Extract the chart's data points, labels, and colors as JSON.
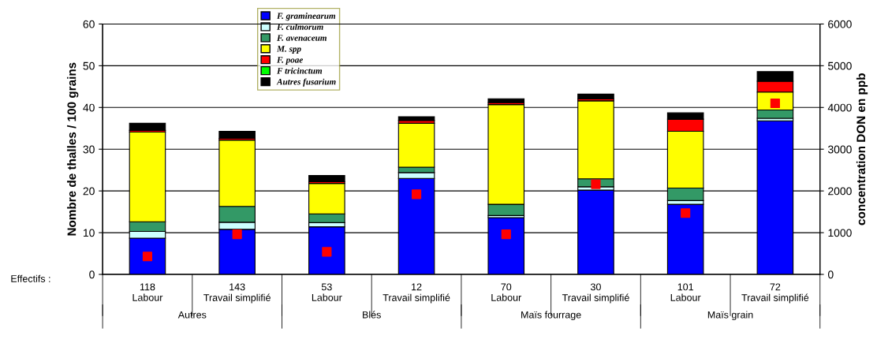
{
  "chart_data": {
    "type": "bar",
    "stacked": true,
    "ylabel": "Nombre de thalles / 100 grains",
    "y2label": "concentration DON en ppb",
    "categories": [
      "118\nLabour",
      "143\nTravail simplifié",
      "53\nLabour",
      "12\nTravail simplifié",
      "70\nLabour",
      "30\nTravail simplifié",
      "101\nLabour",
      "72\nTravail simplifié"
    ],
    "annotations": [
      "Effectifs :",
      "Autres",
      "Blés",
      "Maïs fourrage",
      "Maïs grain"
    ],
    "series": [
      {
        "name": "F. graminearum",
        "color": "#0000ff",
        "values": [
          8.7,
          10.8,
          11.4,
          23.0,
          13.6,
          20.2,
          16.8,
          36.8
        ]
      },
      {
        "name": "F. culmorum",
        "color": "#ccffff",
        "values": [
          1.6,
          1.7,
          1.0,
          1.4,
          0.5,
          0.8,
          0.9,
          0.6
        ]
      },
      {
        "name": "F. avenaceum",
        "color": "#339966",
        "values": [
          2.3,
          3.8,
          2.1,
          1.3,
          2.7,
          1.9,
          3.0,
          2.0
        ]
      },
      {
        "name": "M. spp",
        "color": "#ffff00",
        "values": [
          21.5,
          15.9,
          7.3,
          10.5,
          23.9,
          18.7,
          13.6,
          4.3
        ]
      },
      {
        "name": "F. poae",
        "color": "#ff0000",
        "values": [
          0.4,
          0.4,
          0.4,
          0.7,
          0.5,
          0.5,
          2.9,
          2.6
        ]
      },
      {
        "name": "F tricinctum",
        "color": "#00ff00",
        "values": [
          0,
          0,
          0,
          0,
          0,
          0,
          0,
          0
        ]
      },
      {
        "name": "Autres fusarium",
        "color": "#000000",
        "values": [
          1.7,
          1.7,
          1.5,
          0.9,
          0.9,
          1.1,
          1.5,
          2.3
        ]
      },
      {
        "type": "scatter",
        "axis": "y2",
        "color": "#ff0000",
        "marker": "square",
        "values": [
          430,
          960,
          540,
          1920,
          960,
          2160,
          1470,
          4100
        ]
      }
    ],
    "ylim": [
      0,
      60
    ],
    "yticks": [
      0,
      10,
      20,
      30,
      40,
      50,
      60
    ],
    "y2lim": [
      0,
      6000
    ],
    "y2ticks": [
      0,
      1000,
      2000,
      3000,
      4000,
      5000,
      6000
    ],
    "grid": "y",
    "legend": "top left"
  }
}
